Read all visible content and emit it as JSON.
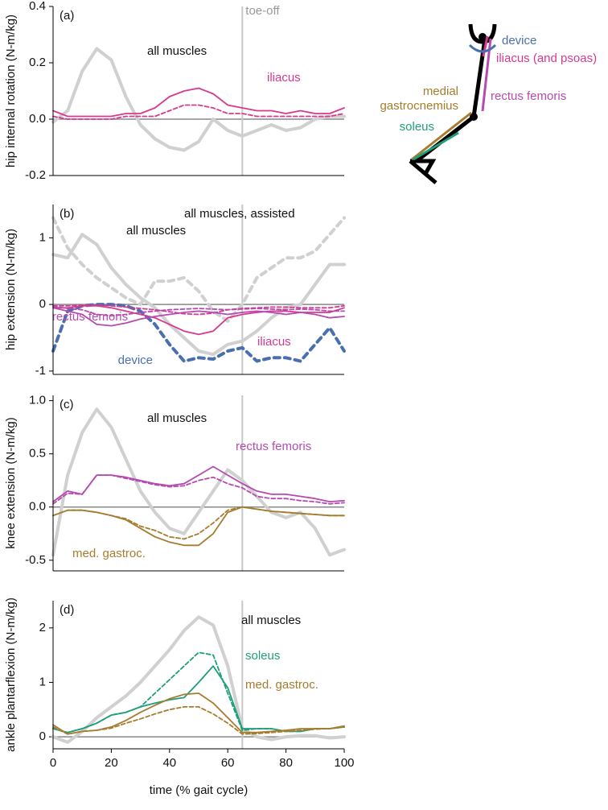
{
  "chart_data": [
    {
      "type": "line",
      "panel": "(a)",
      "ylabel": "hip internal rotation (N-m/kg)",
      "x": [
        0,
        5,
        10,
        15,
        20,
        25,
        30,
        35,
        40,
        45,
        50,
        55,
        60,
        65,
        70,
        75,
        80,
        85,
        90,
        95,
        100
      ],
      "xlim": [
        0,
        100
      ],
      "ylim": [
        -0.2,
        0.4
      ],
      "yticks": [
        -0.2,
        {
          "value": 0,
          "label": "0.0"
        },
        0.2,
        0.4
      ],
      "vline": 65,
      "vline_label": "toe-off",
      "series": [
        {
          "name": "all muscles",
          "color": "#d0d0d0",
          "linewidth": 4,
          "dashed": false,
          "values": [
            -0.01,
            0.03,
            0.17,
            0.25,
            0.21,
            0.08,
            -0.02,
            -0.07,
            -0.1,
            -0.11,
            -0.08,
            0.0,
            -0.04,
            -0.06,
            -0.04,
            -0.02,
            -0.04,
            -0.03,
            0.0,
            0.01,
            0.01
          ]
        },
        {
          "name": "iliacus",
          "color": "#d6398f",
          "linewidth": 1.8,
          "dashed": false,
          "values": [
            0.03,
            0.01,
            0.01,
            0.01,
            0.01,
            0.02,
            0.02,
            0.04,
            0.08,
            0.1,
            0.11,
            0.09,
            0.05,
            0.04,
            0.03,
            0.03,
            0.02,
            0.03,
            0.02,
            0.02,
            0.04
          ]
        },
        {
          "color": "#d6398f",
          "linewidth": 1.8,
          "dashed": true,
          "values": [
            0.01,
            0.0,
            0.0,
            0.0,
            0.0,
            0.01,
            0.01,
            0.01,
            0.03,
            0.05,
            0.05,
            0.04,
            0.02,
            0.02,
            0.01,
            0.01,
            0.01,
            0.01,
            0.01,
            0.01,
            0.02
          ]
        }
      ]
    },
    {
      "type": "line",
      "panel": "(b)",
      "ylabel": "hip extension (N-m/kg)",
      "x": [
        0,
        5,
        10,
        15,
        20,
        25,
        30,
        35,
        40,
        45,
        50,
        55,
        60,
        65,
        70,
        75,
        80,
        85,
        90,
        95,
        100
      ],
      "xlim": [
        0,
        100
      ],
      "ylim": [
        -1.05,
        1.5
      ],
      "yticks": [
        -1,
        0,
        1
      ],
      "vline": 65,
      "series": [
        {
          "name": "all muscles",
          "color": "#d0d0d0",
          "linewidth": 4,
          "dashed": false,
          "values": [
            0.75,
            0.7,
            1.05,
            0.9,
            0.55,
            0.3,
            0.1,
            -0.05,
            -0.3,
            -0.5,
            -0.7,
            -0.75,
            -0.6,
            -0.55,
            -0.4,
            -0.2,
            -0.05,
            0.0,
            0.3,
            0.6,
            0.6
          ]
        },
        {
          "name": "all muscles, assisted",
          "color": "#d0d0d0",
          "linewidth": 4,
          "dashed": true,
          "values": [
            1.3,
            0.85,
            0.6,
            0.4,
            0.25,
            0.1,
            0.0,
            0.35,
            0.35,
            0.4,
            0.2,
            -0.1,
            -0.25,
            0.0,
            0.4,
            0.55,
            0.7,
            0.7,
            0.8,
            1.05,
            1.3
          ]
        },
        {
          "name": "device",
          "color": "#4a6fae",
          "linewidth": 4,
          "dashed": true,
          "values": [
            -0.7,
            -0.1,
            -0.02,
            0.0,
            0.0,
            -0.02,
            -0.1,
            -0.3,
            -0.6,
            -0.85,
            -0.8,
            -0.82,
            -0.7,
            -0.65,
            -0.85,
            -0.8,
            -0.8,
            -0.85,
            -0.6,
            -0.35,
            -0.7
          ]
        },
        {
          "name": "iliacus",
          "color": "#d6398f",
          "linewidth": 1.8,
          "dashed": false,
          "values": [
            -0.05,
            -0.05,
            -0.02,
            -0.02,
            -0.05,
            -0.1,
            -0.15,
            -0.2,
            -0.3,
            -0.4,
            -0.45,
            -0.4,
            -0.2,
            -0.15,
            -0.12,
            -0.1,
            -0.1,
            -0.12,
            -0.12,
            -0.12,
            -0.05
          ]
        },
        {
          "color": "#d6398f",
          "linewidth": 1.8,
          "dashed": true,
          "values": [
            -0.02,
            -0.02,
            -0.01,
            -0.01,
            -0.02,
            -0.04,
            -0.06,
            -0.08,
            -0.11,
            -0.14,
            -0.15,
            -0.13,
            -0.08,
            -0.06,
            -0.05,
            -0.04,
            -0.04,
            -0.05,
            -0.05,
            -0.05,
            -0.02
          ]
        },
        {
          "name": "rectus femoris",
          "color": "#b64ab0",
          "linewidth": 1.8,
          "dashed": false,
          "values": [
            -0.05,
            -0.1,
            -0.15,
            -0.3,
            -0.32,
            -0.28,
            -0.22,
            -0.18,
            -0.15,
            -0.12,
            -0.1,
            -0.12,
            -0.15,
            -0.12,
            -0.1,
            -0.12,
            -0.15,
            -0.12,
            -0.15,
            -0.2,
            -0.18
          ]
        },
        {
          "color": "#b64ab0",
          "linewidth": 1.8,
          "dashed": true,
          "values": [
            -0.03,
            -0.06,
            -0.08,
            -0.15,
            -0.17,
            -0.15,
            -0.12,
            -0.1,
            -0.08,
            -0.07,
            -0.06,
            -0.07,
            -0.08,
            -0.07,
            -0.06,
            -0.07,
            -0.08,
            -0.07,
            -0.08,
            -0.1,
            -0.1
          ]
        }
      ]
    },
    {
      "type": "line",
      "panel": "(c)",
      "ylabel": "knee extension (N-m/kg)",
      "x": [
        0,
        5,
        10,
        15,
        20,
        25,
        30,
        35,
        40,
        45,
        50,
        55,
        60,
        65,
        70,
        75,
        80,
        85,
        90,
        95,
        100
      ],
      "xlim": [
        0,
        100
      ],
      "ylim": [
        -0.6,
        1.05
      ],
      "yticks": [
        -0.5,
        {
          "value": 0,
          "label": "0.0"
        },
        0.5,
        {
          "value": 1,
          "label": "1.0"
        }
      ],
      "vline": 65,
      "series": [
        {
          "name": "all muscles",
          "color": "#d0d0d0",
          "linewidth": 4,
          "dashed": false,
          "values": [
            -0.45,
            0.3,
            0.7,
            0.92,
            0.75,
            0.45,
            0.15,
            -0.05,
            -0.2,
            -0.25,
            -0.05,
            0.15,
            0.35,
            0.25,
            0.1,
            -0.05,
            -0.1,
            -0.05,
            -0.2,
            -0.45,
            -0.4
          ]
        },
        {
          "name": "rectus femoris",
          "color": "#b64ab0",
          "linewidth": 1.8,
          "dashed": false,
          "values": [
            0.05,
            0.15,
            0.12,
            0.3,
            0.3,
            0.28,
            0.25,
            0.22,
            0.2,
            0.22,
            0.3,
            0.38,
            0.3,
            0.22,
            0.15,
            0.12,
            0.12,
            0.1,
            0.08,
            0.05,
            0.06
          ]
        },
        {
          "color": "#b64ab0",
          "linewidth": 1.8,
          "dashed": true,
          "values": [
            0.03,
            0.13,
            0.12,
            0.3,
            0.3,
            0.27,
            0.24,
            0.21,
            0.19,
            0.2,
            0.25,
            0.28,
            0.22,
            0.18,
            0.1,
            0.08,
            0.08,
            0.06,
            0.05,
            0.03,
            0.04
          ]
        },
        {
          "name": "med. gastroc.",
          "color": "#a67c2e",
          "linewidth": 1.8,
          "dashed": false,
          "values": [
            -0.08,
            -0.03,
            -0.03,
            -0.05,
            -0.08,
            -0.12,
            -0.2,
            -0.28,
            -0.33,
            -0.36,
            -0.36,
            -0.25,
            -0.05,
            0.0,
            -0.02,
            -0.04,
            -0.05,
            -0.06,
            -0.07,
            -0.08,
            -0.08
          ]
        },
        {
          "color": "#a67c2e",
          "linewidth": 1.8,
          "dashed": true,
          "values": [
            -0.08,
            -0.03,
            -0.03,
            -0.05,
            -0.08,
            -0.11,
            -0.18,
            -0.22,
            -0.28,
            -0.3,
            -0.25,
            -0.15,
            -0.03,
            0.0,
            -0.02,
            -0.04,
            -0.05,
            -0.06,
            -0.07,
            -0.08,
            -0.08
          ]
        }
      ]
    },
    {
      "type": "line",
      "panel": "(d)",
      "ylabel": "ankle plantarflexion (N-m/kg)",
      "xlabel": "time (% gait cycle)",
      "x": [
        0,
        5,
        10,
        15,
        20,
        25,
        30,
        35,
        40,
        45,
        50,
        55,
        60,
        65,
        70,
        75,
        80,
        85,
        90,
        95,
        100
      ],
      "xlim": [
        0,
        100
      ],
      "xticks": [
        0,
        20,
        40,
        60,
        80,
        100
      ],
      "ylim": [
        -0.22,
        2.5
      ],
      "yticks": [
        0,
        1,
        2
      ],
      "vline": 65,
      "series": [
        {
          "name": "all muscles",
          "color": "#d0d0d0",
          "linewidth": 4,
          "dashed": false,
          "values": [
            0.0,
            -0.1,
            0.1,
            0.35,
            0.55,
            0.75,
            1.0,
            1.3,
            1.6,
            1.95,
            2.2,
            2.05,
            1.3,
            0.15,
            0.0,
            -0.05,
            0.0,
            0.02,
            0.02,
            -0.02,
            0.0
          ]
        },
        {
          "name": "soleus",
          "color": "#1f9e7a",
          "linewidth": 1.8,
          "dashed": false,
          "values": [
            0.15,
            0.08,
            0.15,
            0.25,
            0.4,
            0.45,
            0.55,
            0.62,
            0.68,
            0.72,
            1.0,
            1.3,
            0.9,
            0.15,
            0.15,
            0.15,
            0.1,
            0.1,
            0.15,
            0.15,
            0.18
          ]
        },
        {
          "color": "#1f9e7a",
          "linewidth": 1.8,
          "dashed": true,
          "values": [
            0.15,
            0.08,
            0.15,
            0.25,
            0.4,
            0.45,
            0.55,
            0.8,
            1.05,
            1.3,
            1.55,
            1.5,
            0.8,
            0.12,
            0.15,
            0.15,
            0.1,
            0.1,
            0.15,
            0.15,
            0.18
          ]
        },
        {
          "name": "med. gastroc.",
          "color": "#a67c2e",
          "linewidth": 1.8,
          "dashed": false,
          "values": [
            0.22,
            0.05,
            0.1,
            0.12,
            0.18,
            0.3,
            0.45,
            0.58,
            0.7,
            0.78,
            0.8,
            0.62,
            0.35,
            0.08,
            0.08,
            0.1,
            0.12,
            0.15,
            0.15,
            0.15,
            0.2
          ]
        },
        {
          "color": "#a67c2e",
          "linewidth": 1.8,
          "dashed": true,
          "values": [
            0.18,
            0.05,
            0.1,
            0.12,
            0.16,
            0.25,
            0.33,
            0.42,
            0.5,
            0.55,
            0.55,
            0.42,
            0.25,
            0.05,
            0.06,
            0.08,
            0.1,
            0.12,
            0.14,
            0.15,
            0.18
          ]
        }
      ]
    }
  ],
  "diagram": {
    "device": "device",
    "iliacus": "iliacus (and psoas)",
    "rectus_femoris": "rectus femoris",
    "gastrocnemius": [
      "medial",
      "gastrocnemius"
    ],
    "soleus": "soleus"
  }
}
